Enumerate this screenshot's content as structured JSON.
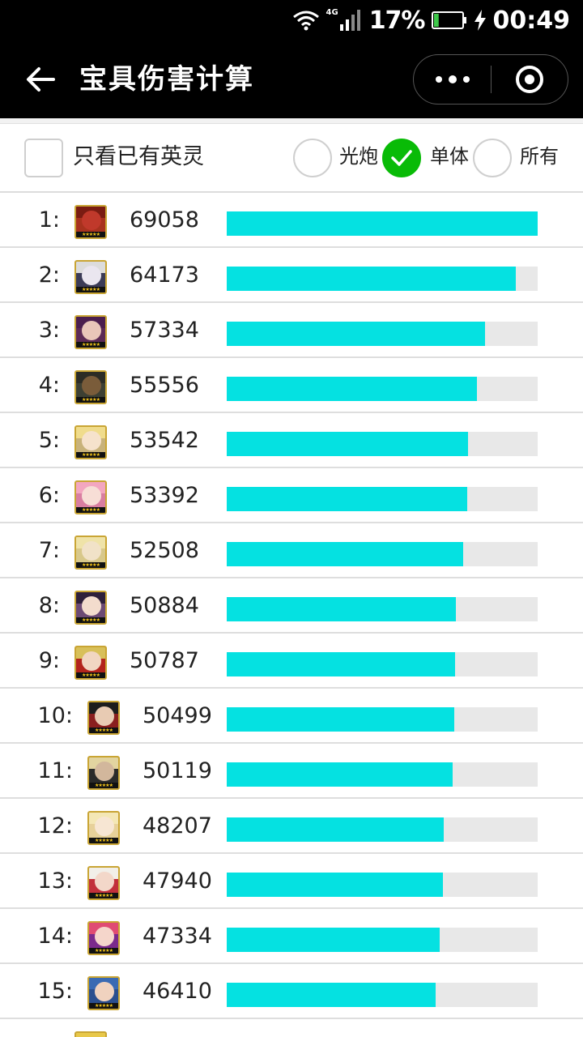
{
  "status_bar": {
    "network": "4G",
    "battery_percent": "17%",
    "battery_level": 0.17,
    "time": "00:49"
  },
  "nav": {
    "title": "宝具伤害计算"
  },
  "filters": {
    "only_owned_label": "只看已有英灵",
    "only_owned_checked": false,
    "options": [
      {
        "label": "光炮",
        "selected": false
      },
      {
        "label": "单体",
        "selected": true
      },
      {
        "label": "所有",
        "selected": false
      }
    ]
  },
  "ranking": [
    {
      "rank": "1:",
      "damage": "69058",
      "value": 69058,
      "colors": {
        "hair": "#7a1c12",
        "face": "#c0392b",
        "bg": "#a8321e"
      }
    },
    {
      "rank": "2:",
      "damage": "64173",
      "value": 64173,
      "colors": {
        "hair": "#dcdcdc",
        "face": "#eae6ef",
        "bg": "#3b3b56"
      }
    },
    {
      "rank": "3:",
      "damage": "57334",
      "value": 57334,
      "colors": {
        "hair": "#4b1e4e",
        "face": "#e9c6b9",
        "bg": "#5c2a55"
      }
    },
    {
      "rank": "4:",
      "damage": "55556",
      "value": 55556,
      "colors": {
        "hair": "#2c2c25",
        "face": "#7a5c3a",
        "bg": "#3d4033"
      }
    },
    {
      "rank": "5:",
      "damage": "53542",
      "value": 53542,
      "colors": {
        "hair": "#f0dc8c",
        "face": "#f6e2cc",
        "bg": "#c8b27a"
      }
    },
    {
      "rank": "6:",
      "damage": "53392",
      "value": 53392,
      "colors": {
        "hair": "#f3a6c0",
        "face": "#f7ded6",
        "bg": "#d97ea1"
      }
    },
    {
      "rank": "7:",
      "damage": "52508",
      "value": 52508,
      "colors": {
        "hair": "#efe3a8",
        "face": "#f1e2c8",
        "bg": "#d8c88a"
      }
    },
    {
      "rank": "8:",
      "damage": "50884",
      "value": 50884,
      "colors": {
        "hair": "#2e1f3a",
        "face": "#f3dccd",
        "bg": "#6c4a74"
      }
    },
    {
      "rank": "9:",
      "damage": "50787",
      "value": 50787,
      "colors": {
        "hair": "#d8c05a",
        "face": "#f1d6c2",
        "bg": "#b3241c"
      }
    },
    {
      "rank": "10:",
      "damage": "50499",
      "value": 50499,
      "colors": {
        "hair": "#1d1d1d",
        "face": "#e8cbb3",
        "bg": "#8a1f1f"
      }
    },
    {
      "rank": "11:",
      "damage": "50119",
      "value": 50119,
      "colors": {
        "hair": "#e2d4a0",
        "face": "#d2b79c",
        "bg": "#2a2a2a"
      }
    },
    {
      "rank": "12:",
      "damage": "48207",
      "value": 48207,
      "colors": {
        "hair": "#f4e7b5",
        "face": "#f7e6d3",
        "bg": "#e7d19a"
      }
    },
    {
      "rank": "13:",
      "damage": "47940",
      "value": 47940,
      "colors": {
        "hair": "#f2efe9",
        "face": "#f3d7c9",
        "bg": "#c2303b"
      }
    },
    {
      "rank": "14:",
      "damage": "47334",
      "value": 47334,
      "colors": {
        "hair": "#e04b73",
        "face": "#f5d6cb",
        "bg": "#7b2a8c"
      }
    },
    {
      "rank": "15:",
      "damage": "46410",
      "value": 46410,
      "colors": {
        "hair": "#3a6ab3",
        "face": "#f0d2bf",
        "bg": "#2b4f8f"
      }
    },
    {
      "rank": "",
      "damage": "",
      "value": null,
      "colors": {
        "hair": "#e8c84a",
        "face": "#f1ddbb",
        "bg": "#c9a534"
      }
    }
  ],
  "max_value": 69058,
  "accent_color": "#05e1e1",
  "check_color": "#09bb07"
}
